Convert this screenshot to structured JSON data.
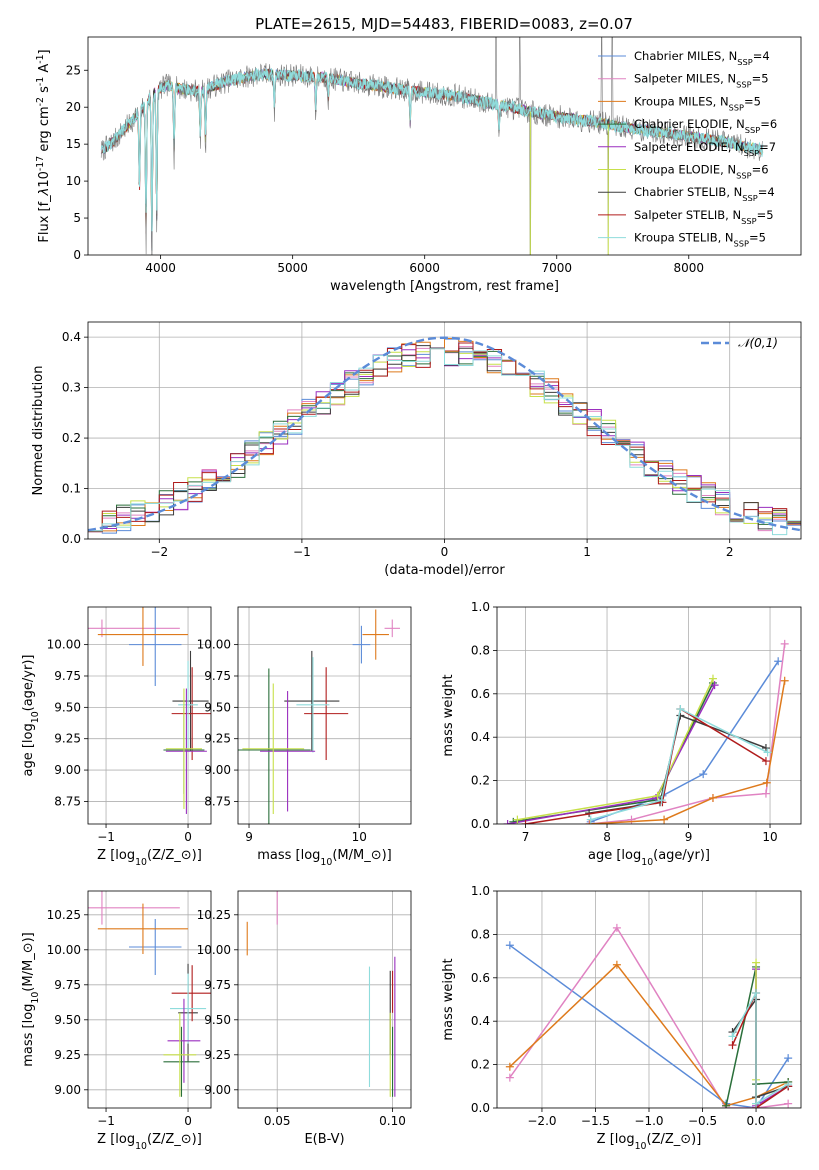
{
  "figure_title": "PLATE=2615, MJD=54483, FIBERID=0083, z=0.07",
  "models": [
    {
      "label": "Chabrier MILES, N$_{SSP}$=4",
      "imf": "Chabrier",
      "lib": "MILES",
      "nssp": 4,
      "color": "#5b8bd8"
    },
    {
      "label": "Salpeter MILES, N$_{SSP}$=5",
      "imf": "Salpeter",
      "lib": "MILES",
      "nssp": 5,
      "color": "#e083c2"
    },
    {
      "label": "Kroupa MILES, N$_{SSP}$=5",
      "imf": "Kroupa",
      "lib": "MILES",
      "nssp": 5,
      "color": "#de7a1c"
    },
    {
      "label": "Chabrier ELODIE, N$_{SSP}$=6",
      "imf": "Chabrier",
      "lib": "ELODIE",
      "nssp": 6,
      "color": "#2a6f3a"
    },
    {
      "label": "Salpeter ELODIE, N$_{SSP}$=7",
      "imf": "Salpeter",
      "lib": "ELODIE",
      "nssp": 7,
      "color": "#9a2fbf"
    },
    {
      "label": "Kroupa ELODIE, N$_{SSP}$=6",
      "imf": "Kroupa",
      "lib": "ELODIE",
      "nssp": 6,
      "color": "#c7e04a"
    },
    {
      "label": "Chabrier STELIB, N$_{SSP}$=4",
      "imf": "Chabrier",
      "lib": "STELIB",
      "nssp": 4,
      "color": "#3d3d3d"
    },
    {
      "label": "Salpeter STELIB, N$_{SSP}$=5",
      "imf": "Salpeter",
      "lib": "STELIB",
      "nssp": 5,
      "color": "#b01c1c"
    },
    {
      "label": "Kroupa STELIB, N$_{SSP}$=5",
      "imf": "Kroupa",
      "lib": "STELIB",
      "nssp": 5,
      "color": "#8fdcdc"
    }
  ],
  "chart_data": [
    {
      "id": "spectrum",
      "type": "line",
      "xlabel": "wavelength [Angstrom, rest frame]",
      "ylabel": "Flux [f$_\\lambda$10$^{-17}$ erg cm$^{-2}$ s$^{-1}$ A$^{-1}$]",
      "xlim": [
        3450,
        8850
      ],
      "ylim": [
        0,
        29.5
      ],
      "xticks": [
        4000,
        5000,
        6000,
        7000,
        8000
      ],
      "yticks": [
        0,
        5,
        10,
        15,
        20,
        25
      ],
      "grid": false,
      "legend": "top-right",
      "continuum": {
        "x": [
          3550,
          3650,
          3750,
          3850,
          3950,
          4050,
          4150,
          4300,
          4500,
          4750,
          5000,
          5250,
          5500,
          5750,
          6000,
          6250,
          6500,
          6700,
          6900,
          7100,
          7300,
          7500,
          7700,
          8000,
          8300,
          8550
        ],
        "y": [
          14.0,
          15.5,
          17.5,
          19.5,
          22.0,
          23.0,
          22.5,
          22.2,
          23.5,
          24.5,
          24.3,
          24.0,
          23.2,
          22.6,
          22.0,
          21.5,
          20.5,
          19.8,
          19.0,
          18.5,
          18.0,
          17.3,
          16.8,
          16.1,
          15.2,
          14.2
        ]
      },
      "absorption_features": [
        {
          "x": 3840,
          "depth": 12
        },
        {
          "x": 3889,
          "depth": 20
        },
        {
          "x": 3934,
          "depth": 24
        },
        {
          "x": 3970,
          "depth": 20
        },
        {
          "x": 4102,
          "depth": 10
        },
        {
          "x": 4300,
          "depth": 7
        },
        {
          "x": 4340,
          "depth": 8
        },
        {
          "x": 4861,
          "depth": 5
        },
        {
          "x": 5175,
          "depth": 5
        },
        {
          "x": 5270,
          "depth": 3
        },
        {
          "x": 5890,
          "depth": 5
        },
        {
          "x": 6563,
          "depth": 4
        }
      ],
      "spikes": [
        {
          "x": 6540,
          "height": 29.5
        },
        {
          "x": 6720,
          "height": 29.5
        },
        {
          "x": 7340,
          "height": 29.5
        },
        {
          "x": 7420,
          "height": 29.5
        }
      ],
      "drops": [
        {
          "x": 6800,
          "to": 0
        },
        {
          "x": 7390,
          "to": 0
        }
      ]
    },
    {
      "id": "residuals",
      "type": "step",
      "xlabel": "(data-model)/error",
      "ylabel": "Normed distribution",
      "xlim": [
        -2.5,
        2.5
      ],
      "ylim": [
        0,
        0.43
      ],
      "xticks": [
        -2,
        -1,
        0,
        1,
        2
      ],
      "yticks": [
        0.0,
        0.1,
        0.2,
        0.3,
        0.4
      ],
      "grid": true,
      "legend": "top-right",
      "bins": 50,
      "gaussian": {
        "label": "$\\mathcal{N}(0,1)$",
        "color": "#5b8bd8",
        "mu": 0,
        "sigma": 1
      }
    },
    {
      "id": "age-vs-z",
      "type": "errorbar",
      "xlabel": "Z [log$_{10}$(Z/Z$_\\odot$)]",
      "ylabel": "age  [log$_{10}$(age/yr)]",
      "xlim": [
        -1.22,
        0.28
      ],
      "ylim": [
        8.57,
        10.3
      ],
      "xticks": [
        -1,
        0
      ],
      "yticks": [
        8.75,
        9.0,
        9.25,
        9.5,
        9.75,
        10.0
      ],
      "grid": true,
      "points": [
        {
          "model": 1,
          "x": -1.05,
          "xerr": 0.95,
          "y": 10.13,
          "yerr": 0.07
        },
        {
          "model": 0,
          "x": -0.4,
          "xerr": 0.32,
          "y": 10.0,
          "yerr": 0.33
        },
        {
          "model": 2,
          "x": -0.55,
          "xerr": 0.55,
          "y": 10.08,
          "yerr": 0.25
        },
        {
          "model": 6,
          "x": 0.03,
          "xerr": 0.22,
          "y": 9.55,
          "yerr": 0.4
        },
        {
          "model": 7,
          "x": 0.05,
          "xerr": 0.25,
          "y": 9.45,
          "yerr": 0.37
        },
        {
          "model": 8,
          "x": 0.0,
          "xerr": 0.12,
          "y": 9.52,
          "yerr": 0.35
        },
        {
          "model": 3,
          "x": -0.05,
          "xerr": 0.25,
          "y": 9.16,
          "yerr": 0.35
        },
        {
          "model": 4,
          "x": -0.02,
          "xerr": 0.25,
          "y": 9.15,
          "yerr": 0.5
        },
        {
          "model": 5,
          "x": -0.05,
          "xerr": 0.22,
          "y": 9.17,
          "yerr": 0.48
        }
      ]
    },
    {
      "id": "age-vs-mass",
      "type": "errorbar",
      "xlabel": "mass [log$_{10}$(M/M$_\\odot$)]",
      "ylabel": "",
      "xlim": [
        8.9,
        10.47
      ],
      "ylim": [
        8.57,
        10.3
      ],
      "xticks": [
        9,
        10
      ],
      "yticks": [
        8.75,
        9.0,
        9.25,
        9.5,
        9.75,
        10.0
      ],
      "grid": true,
      "points": [
        {
          "model": 1,
          "x": 10.3,
          "xerr": 0.07,
          "y": 10.13,
          "yerr": 0.07
        },
        {
          "model": 0,
          "x": 10.02,
          "xerr": 0.08,
          "y": 10.0,
          "yerr": 0.15
        },
        {
          "model": 2,
          "x": 10.15,
          "xerr": 0.12,
          "y": 10.08,
          "yerr": 0.2
        },
        {
          "model": 6,
          "x": 9.57,
          "xerr": 0.25,
          "y": 9.55,
          "yerr": 0.4
        },
        {
          "model": 7,
          "x": 9.7,
          "xerr": 0.2,
          "y": 9.45,
          "yerr": 0.37
        },
        {
          "model": 8,
          "x": 9.58,
          "xerr": 0.15,
          "y": 9.52,
          "yerr": 0.38
        },
        {
          "model": 3,
          "x": 9.18,
          "xerr": 0.38,
          "y": 9.16,
          "yerr": 0.65
        },
        {
          "model": 4,
          "x": 9.35,
          "xerr": 0.25,
          "y": 9.15,
          "yerr": 0.48
        },
        {
          "model": 5,
          "x": 9.22,
          "xerr": 0.28,
          "y": 9.17,
          "yerr": 0.52
        }
      ]
    },
    {
      "id": "massweight-vs-age",
      "type": "line",
      "xlabel": "age  [log$_{10}$(age/yr)]",
      "ylabel": "mass weight",
      "xlim": [
        6.65,
        10.38
      ],
      "ylim": [
        0,
        1.0
      ],
      "xticks": [
        7,
        8,
        9,
        10
      ],
      "yticks": [
        0.0,
        0.2,
        0.4,
        0.6,
        0.8,
        1.0
      ],
      "grid": true,
      "series": [
        {
          "model": 0,
          "x": [
            7.8,
            8.68,
            9.18,
            10.1
          ],
          "y": [
            0.01,
            0.13,
            0.23,
            0.75
          ]
        },
        {
          "model": 1,
          "x": [
            7.78,
            8.3,
            9.3,
            9.95,
            10.18
          ],
          "y": [
            0.0,
            0.02,
            0.12,
            0.14,
            0.83
          ]
        },
        {
          "model": 2,
          "x": [
            7.79,
            8.7,
            9.3,
            9.96,
            10.18
          ],
          "y": [
            0.0,
            0.02,
            0.12,
            0.19,
            0.66
          ]
        },
        {
          "model": 3,
          "x": [
            6.85,
            8.6,
            9.3
          ],
          "y": [
            0.01,
            0.11,
            0.65
          ]
        },
        {
          "model": 4,
          "x": [
            6.78,
            8.6,
            9.32
          ],
          "y": [
            0.0,
            0.12,
            0.64
          ]
        },
        {
          "model": 5,
          "x": [
            6.9,
            8.62,
            9.3
          ],
          "y": [
            0.02,
            0.13,
            0.67
          ]
        },
        {
          "model": 6,
          "x": [
            7.78,
            8.65,
            8.9,
            9.95
          ],
          "y": [
            0.05,
            0.1,
            0.5,
            0.35
          ]
        },
        {
          "model": 7,
          "x": [
            7.0,
            8.68,
            8.9,
            9.95
          ],
          "y": [
            0.0,
            0.1,
            0.53,
            0.29
          ]
        },
        {
          "model": 8,
          "x": [
            7.8,
            8.67,
            8.9,
            9.97
          ],
          "y": [
            0.02,
            0.11,
            0.53,
            0.33
          ]
        }
      ]
    },
    {
      "id": "mass-vs-z",
      "type": "errorbar",
      "xlabel": "Z [log$_{10}$(Z/Z$_\\odot$)]",
      "ylabel": "mass [log$_{10}$(M/M$_\\odot$)]",
      "xlim": [
        -1.22,
        0.28
      ],
      "ylim": [
        8.87,
        10.42
      ],
      "xticks": [
        -1,
        0
      ],
      "yticks": [
        9.0,
        9.25,
        9.5,
        9.75,
        10.0,
        10.25
      ],
      "grid": true,
      "points": [
        {
          "model": 1,
          "x": -1.05,
          "xerr": 0.95,
          "y": 10.3,
          "yerr": 0.12
        },
        {
          "model": 0,
          "x": -0.4,
          "xerr": 0.32,
          "y": 10.02,
          "yerr": 0.2
        },
        {
          "model": 2,
          "x": -0.55,
          "xerr": 0.55,
          "y": 10.15,
          "yerr": 0.18
        },
        {
          "model": 6,
          "x": 0.0,
          "xerr": 0.12,
          "y": 9.55,
          "yerr": 0.35
        },
        {
          "model": 7,
          "x": 0.05,
          "xerr": 0.25,
          "y": 9.69,
          "yerr": 0.2
        },
        {
          "model": 8,
          "x": 0.0,
          "xerr": 0.22,
          "y": 9.58,
          "yerr": 0.25
        },
        {
          "model": 3,
          "x": -0.08,
          "xerr": 0.22,
          "y": 9.2,
          "yerr": 0.25
        },
        {
          "model": 4,
          "x": -0.05,
          "xerr": 0.2,
          "y": 9.35,
          "yerr": 0.3
        },
        {
          "model": 5,
          "x": -0.1,
          "xerr": 0.2,
          "y": 9.25,
          "yerr": 0.3
        }
      ]
    },
    {
      "id": "mass-vs-ebv",
      "type": "errorbar",
      "xlabel": "E(B-V)",
      "ylabel": "",
      "xlim": [
        0.033,
        0.108
      ],
      "ylim": [
        8.87,
        10.42
      ],
      "xticks": [
        0.05,
        0.1
      ],
      "yticks": [
        9.0,
        9.25,
        9.5,
        9.75,
        10.0,
        10.25
      ],
      "grid": true,
      "points": [
        {
          "model": 1,
          "x": 0.05,
          "xerr": 0,
          "y": 10.3,
          "yerr": 0.12
        },
        {
          "model": 2,
          "x": 0.037,
          "xerr": 0,
          "y": 10.08,
          "yerr": 0.12
        },
        {
          "model": 8,
          "x": 0.09,
          "xerr": 0,
          "y": 9.45,
          "yerr": 0.43
        },
        {
          "model": 7,
          "x": 0.1,
          "xerr": 0,
          "y": 9.7,
          "yerr": 0.15
        },
        {
          "model": 6,
          "x": 0.099,
          "xerr": 0,
          "y": 9.55,
          "yerr": 0.3
        },
        {
          "model": 5,
          "x": 0.099,
          "xerr": 0,
          "y": 9.25,
          "yerr": 0.3
        },
        {
          "model": 3,
          "x": 0.1,
          "xerr": 0,
          "y": 9.2,
          "yerr": 0.25
        },
        {
          "model": 4,
          "x": 0.101,
          "xerr": 0,
          "y": 9.45,
          "yerr": 0.5
        }
      ]
    },
    {
      "id": "massweight-vs-z",
      "type": "line",
      "xlabel": "Z [log$_{10}$(Z/Z$_\\odot$)]",
      "ylabel": "mass weight",
      "xlim": [
        -2.42,
        0.42
      ],
      "ylim": [
        0,
        1.0
      ],
      "xticks": [
        -2.0,
        -1.5,
        -1.0,
        -0.5,
        0.0
      ],
      "yticks": [
        0.0,
        0.2,
        0.4,
        0.6,
        0.8,
        1.0
      ],
      "grid": true,
      "series": [
        {
          "model": 0,
          "x": [
            -2.3,
            -0.28,
            0.0,
            0.3
          ],
          "y": [
            0.75,
            0.02,
            0.0,
            0.23
          ]
        },
        {
          "model": 1,
          "x": [
            -2.3,
            -1.3,
            -0.28,
            0.0,
            0.3
          ],
          "y": [
            0.14,
            0.83,
            0.0,
            0.0,
            0.02
          ]
        },
        {
          "model": 2,
          "x": [
            -2.3,
            -1.3,
            -0.28,
            0.0,
            0.3
          ],
          "y": [
            0.19,
            0.66,
            0.01,
            0.05,
            0.12
          ]
        },
        {
          "model": 3,
          "x": [
            -0.28,
            0.0,
            0.0,
            0.3
          ],
          "y": [
            0.01,
            0.65,
            0.11,
            0.12
          ]
        },
        {
          "model": 4,
          "x": [
            0.0,
            0.0,
            0.3
          ],
          "y": [
            0.64,
            0.01,
            0.1
          ]
        },
        {
          "model": 5,
          "x": [
            0.0,
            0.0,
            0.0
          ],
          "y": [
            0.02,
            0.67,
            0.13
          ]
        },
        {
          "model": 6,
          "x": [
            -0.22,
            0.0,
            0.0,
            0.3
          ],
          "y": [
            0.35,
            0.5,
            0.05,
            0.1
          ]
        },
        {
          "model": 7,
          "x": [
            -0.22,
            0.0,
            0.0,
            0.3
          ],
          "y": [
            0.29,
            0.53,
            0.0,
            0.1
          ]
        },
        {
          "model": 8,
          "x": [
            -0.22,
            0.0,
            0.0,
            0.3
          ],
          "y": [
            0.33,
            0.53,
            0.02,
            0.11
          ]
        }
      ]
    }
  ]
}
